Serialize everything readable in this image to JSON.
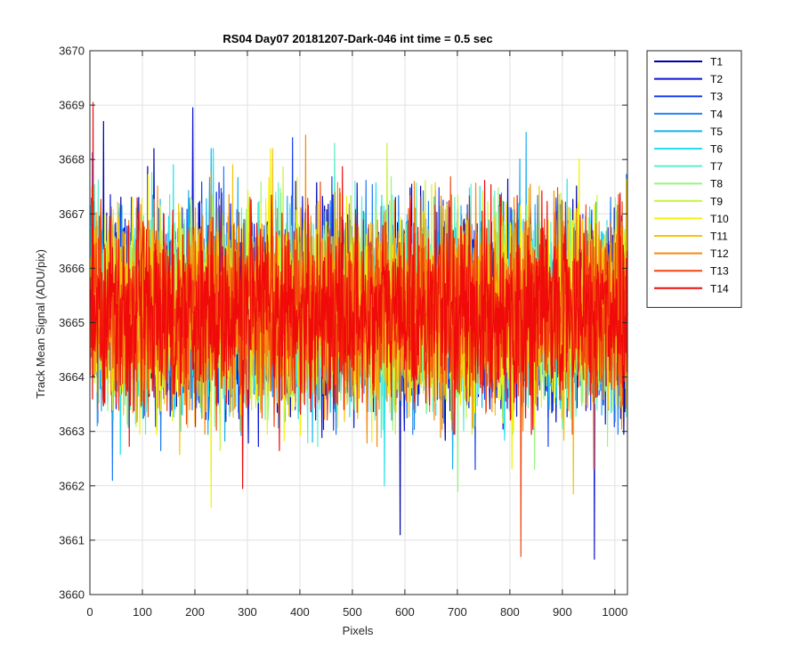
{
  "chart_data": {
    "type": "line",
    "title": "RS04 Day07 20181207-Dark-046 int time = 0.5 sec",
    "xlabel": "Pixels",
    "ylabel": "Track Mean Signal (ADU/pix)",
    "xlim": [
      0,
      1024
    ],
    "ylim": [
      3660,
      3670
    ],
    "xticks": [
      0,
      100,
      200,
      300,
      400,
      500,
      600,
      700,
      800,
      900,
      1000
    ],
    "yticks": [
      3660,
      3661,
      3662,
      3663,
      3664,
      3665,
      3666,
      3667,
      3668,
      3669,
      3670
    ],
    "grid": true,
    "legend_position": "outside-top-right",
    "n_points": 1024,
    "baseline_mean": 3665.2,
    "noise_std": 1.0,
    "series": [
      {
        "name": "T1",
        "color": "#0000aa",
        "extremes": [
          {
            "x": 590,
            "y": 3661.1
          },
          {
            "x": 25,
            "y": 3668.7
          }
        ]
      },
      {
        "name": "T2",
        "color": "#0a14d6",
        "extremes": [
          {
            "x": 195,
            "y": 3668.95
          },
          {
            "x": 960,
            "y": 3660.65
          }
        ]
      },
      {
        "name": "T3",
        "color": "#1640f0",
        "extremes": [
          {
            "x": 385,
            "y": 3668.4
          }
        ]
      },
      {
        "name": "T4",
        "color": "#1f7cf5",
        "extremes": [
          {
            "x": 42,
            "y": 3662.1
          }
        ]
      },
      {
        "name": "T5",
        "color": "#1ab0f0",
        "extremes": [
          {
            "x": 830,
            "y": 3668.5
          }
        ]
      },
      {
        "name": "T6",
        "color": "#22e0f0",
        "extremes": [
          {
            "x": 560,
            "y": 3662.0
          }
        ]
      },
      {
        "name": "T7",
        "color": "#5ef0c8",
        "extremes": [
          {
            "x": 465,
            "y": 3668.3
          }
        ]
      },
      {
        "name": "T8",
        "color": "#96f582",
        "extremes": [
          {
            "x": 700,
            "y": 3661.9
          }
        ]
      },
      {
        "name": "T9",
        "color": "#c8f23c",
        "extremes": [
          {
            "x": 565,
            "y": 3668.3
          }
        ]
      },
      {
        "name": "T10",
        "color": "#f2f20a",
        "extremes": [
          {
            "x": 230,
            "y": 3661.6
          }
        ]
      },
      {
        "name": "T11",
        "color": "#f5c30a",
        "extremes": [
          {
            "x": 920,
            "y": 3661.85
          }
        ]
      },
      {
        "name": "T12",
        "color": "#f58a0f",
        "extremes": [
          {
            "x": 410,
            "y": 3668.45
          }
        ]
      },
      {
        "name": "T13",
        "color": "#f0460f",
        "extremes": [
          {
            "x": 820,
            "y": 3660.7
          }
        ]
      },
      {
        "name": "T14",
        "color": "#f00a0a",
        "extremes": [
          {
            "x": 5,
            "y": 3669.05
          },
          {
            "x": 290,
            "y": 3661.95
          }
        ]
      }
    ]
  }
}
